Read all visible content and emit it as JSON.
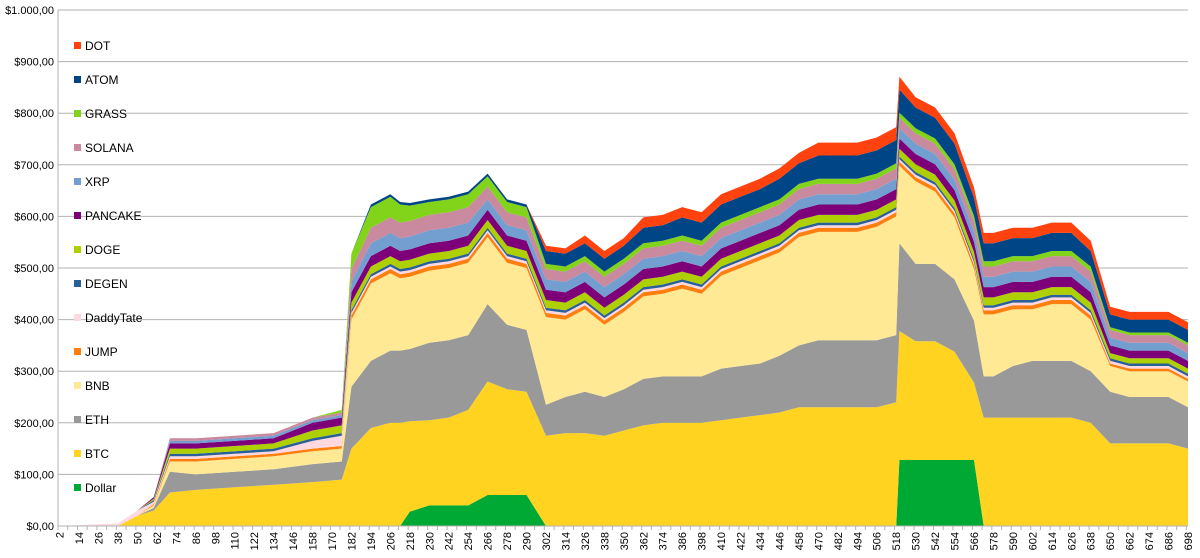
{
  "chart_data": {
    "type": "area",
    "stacked": true,
    "title": "",
    "xlabel": "",
    "ylabel": "",
    "ylim": [
      0,
      1000
    ],
    "y_ticks": [
      0,
      100,
      200,
      300,
      400,
      500,
      600,
      700,
      800,
      900,
      1000
    ],
    "y_tick_labels": [
      "$0,00",
      "$100,00",
      "$200,00",
      "$300,00",
      "$400,00",
      "$500,00",
      "$600,00",
      "$700,00",
      "$800,00",
      "$900,00",
      "$1.000,00"
    ],
    "xlim": [
      1,
      698
    ],
    "x_tick_labels": [
      "2",
      "14",
      "26",
      "38",
      "50",
      "62",
      "74",
      "86",
      "98",
      "110",
      "122",
      "134",
      "146",
      "158",
      "170",
      "182",
      "194",
      "206",
      "218",
      "230",
      "242",
      "254",
      "266",
      "278",
      "290",
      "302",
      "314",
      "326",
      "338",
      "350",
      "362",
      "374",
      "386",
      "398",
      "410",
      "422",
      "434",
      "446",
      "458",
      "470",
      "482",
      "494",
      "506",
      "518",
      "530",
      "542",
      "554",
      "566",
      "578",
      "590",
      "602",
      "614",
      "626",
      "638",
      "650",
      "662",
      "674",
      "686",
      "698"
    ],
    "grid": "horizontal",
    "legend_position": "left-inside",
    "x": [
      2,
      38,
      50,
      60,
      70,
      86,
      110,
      134,
      158,
      176,
      182,
      194,
      206,
      212,
      218,
      230,
      242,
      254,
      266,
      278,
      290,
      302,
      314,
      326,
      338,
      350,
      362,
      374,
      386,
      398,
      410,
      422,
      434,
      446,
      458,
      470,
      482,
      494,
      506,
      518,
      520,
      530,
      542,
      554,
      566,
      572,
      578,
      590,
      602,
      614,
      626,
      638,
      650,
      662,
      674,
      686,
      698
    ],
    "series": [
      {
        "name": "Dollar",
        "color": "#00a933",
        "values": [
          0,
          0,
          0,
          0,
          0,
          0,
          0,
          0,
          0,
          0,
          0,
          0,
          0,
          0,
          28,
          40,
          40,
          40,
          60,
          60,
          60,
          0,
          0,
          0,
          0,
          0,
          0,
          0,
          0,
          0,
          0,
          0,
          0,
          0,
          0,
          0,
          0,
          0,
          0,
          0,
          128,
          128,
          128,
          128,
          128,
          0,
          0,
          0,
          0,
          0,
          0,
          0,
          0,
          0,
          0,
          0,
          0
        ]
      },
      {
        "name": "BTC",
        "color": "#ffd320",
        "values": [
          0,
          0,
          20,
          30,
          65,
          70,
          75,
          80,
          85,
          90,
          150,
          190,
          200,
          200,
          175,
          165,
          170,
          185,
          220,
          205,
          200,
          175,
          180,
          180,
          175,
          185,
          195,
          200,
          200,
          200,
          205,
          210,
          215,
          220,
          230,
          230,
          230,
          230,
          230,
          240,
          250,
          230,
          230,
          210,
          150,
          210,
          210,
          210,
          210,
          210,
          210,
          200,
          160,
          160,
          160,
          160,
          150
        ]
      },
      {
        "name": "ETH",
        "color": "#999999",
        "values": [
          0,
          0,
          0,
          5,
          40,
          30,
          30,
          30,
          35,
          35,
          120,
          130,
          140,
          140,
          140,
          150,
          150,
          145,
          150,
          125,
          120,
          60,
          70,
          80,
          75,
          80,
          90,
          90,
          90,
          90,
          100,
          100,
          100,
          110,
          120,
          130,
          130,
          130,
          130,
          130,
          170,
          150,
          150,
          140,
          120,
          80,
          80,
          100,
          110,
          110,
          110,
          100,
          100,
          90,
          90,
          90,
          80
        ]
      },
      {
        "name": "BNB",
        "color": "#ffe994",
        "values": [
          0,
          0,
          0,
          5,
          20,
          25,
          25,
          25,
          25,
          25,
          130,
          150,
          150,
          140,
          140,
          140,
          140,
          140,
          130,
          120,
          120,
          170,
          150,
          160,
          140,
          150,
          160,
          160,
          170,
          160,
          180,
          190,
          200,
          200,
          210,
          210,
          210,
          210,
          220,
          230,
          150,
          160,
          140,
          120,
          100,
          120,
          120,
          110,
          100,
          110,
          110,
          100,
          50,
          50,
          50,
          50,
          50
        ]
      },
      {
        "name": "JUMP",
        "color": "#ff7f0e",
        "values": [
          0,
          0,
          0,
          2,
          5,
          5,
          5,
          5,
          5,
          5,
          8,
          8,
          8,
          8,
          8,
          8,
          8,
          8,
          8,
          8,
          8,
          8,
          8,
          8,
          8,
          8,
          8,
          8,
          8,
          8,
          8,
          8,
          8,
          8,
          8,
          8,
          8,
          8,
          8,
          8,
          8,
          8,
          8,
          8,
          8,
          8,
          8,
          8,
          8,
          8,
          8,
          8,
          5,
          5,
          5,
          5,
          5
        ]
      },
      {
        "name": "DaddyTate",
        "color": "#ffd8e0",
        "values": [
          0,
          5,
          10,
          5,
          5,
          5,
          5,
          5,
          15,
          20,
          5,
          5,
          5,
          5,
          5,
          5,
          5,
          5,
          5,
          5,
          5,
          5,
          5,
          5,
          5,
          5,
          5,
          5,
          5,
          5,
          5,
          5,
          5,
          5,
          5,
          5,
          5,
          5,
          5,
          5,
          5,
          5,
          5,
          5,
          5,
          5,
          5,
          5,
          5,
          5,
          5,
          5,
          5,
          5,
          5,
          5,
          5
        ]
      },
      {
        "name": "DEGEN",
        "color": "#2a6099",
        "values": [
          0,
          0,
          0,
          3,
          5,
          5,
          5,
          5,
          5,
          5,
          5,
          5,
          5,
          5,
          5,
          5,
          5,
          5,
          5,
          5,
          5,
          5,
          5,
          5,
          5,
          5,
          5,
          5,
          5,
          5,
          5,
          5,
          5,
          5,
          5,
          5,
          5,
          5,
          5,
          5,
          5,
          5,
          5,
          5,
          5,
          5,
          5,
          5,
          5,
          5,
          5,
          5,
          5,
          5,
          5,
          5,
          5
        ]
      },
      {
        "name": "DOGE",
        "color": "#aecf00",
        "values": [
          0,
          0,
          0,
          3,
          10,
          10,
          10,
          10,
          15,
          15,
          15,
          15,
          15,
          15,
          15,
          15,
          15,
          15,
          15,
          15,
          15,
          15,
          15,
          15,
          15,
          15,
          15,
          15,
          15,
          15,
          15,
          15,
          15,
          15,
          15,
          15,
          15,
          15,
          15,
          15,
          15,
          15,
          15,
          15,
          15,
          15,
          15,
          15,
          15,
          15,
          15,
          15,
          10,
          10,
          10,
          10,
          10
        ]
      },
      {
        "name": "PANCAKE",
        "color": "#7e0079",
        "values": [
          0,
          0,
          0,
          3,
          10,
          10,
          10,
          10,
          15,
          15,
          20,
          20,
          20,
          20,
          20,
          20,
          20,
          20,
          20,
          20,
          20,
          20,
          20,
          20,
          20,
          20,
          20,
          20,
          20,
          20,
          20,
          20,
          20,
          20,
          20,
          20,
          20,
          20,
          20,
          20,
          20,
          20,
          20,
          20,
          20,
          20,
          20,
          20,
          20,
          20,
          20,
          20,
          15,
          15,
          15,
          15,
          15
        ]
      },
      {
        "name": "XRP",
        "color": "#729fcf",
        "values": [
          0,
          0,
          0,
          0,
          5,
          5,
          5,
          5,
          5,
          5,
          20,
          25,
          25,
          25,
          25,
          25,
          25,
          25,
          20,
          20,
          20,
          20,
          20,
          20,
          20,
          20,
          20,
          20,
          20,
          20,
          20,
          20,
          20,
          20,
          20,
          20,
          20,
          20,
          20,
          20,
          20,
          20,
          20,
          20,
          20,
          20,
          20,
          20,
          20,
          20,
          20,
          20,
          15,
          15,
          15,
          15,
          15
        ]
      },
      {
        "name": "SOLANA",
        "color": "#c9899e",
        "values": [
          0,
          0,
          0,
          0,
          5,
          5,
          5,
          5,
          5,
          5,
          25,
          30,
          30,
          30,
          30,
          30,
          30,
          30,
          25,
          25,
          25,
          20,
          20,
          20,
          20,
          20,
          20,
          20,
          20,
          20,
          20,
          20,
          20,
          20,
          20,
          20,
          20,
          20,
          20,
          20,
          20,
          20,
          20,
          20,
          20,
          20,
          20,
          20,
          20,
          20,
          20,
          20,
          15,
          15,
          15,
          15,
          15
        ]
      },
      {
        "name": "GRASS",
        "color": "#81d41a",
        "values": [
          0,
          0,
          0,
          0,
          0,
          0,
          0,
          0,
          0,
          5,
          30,
          40,
          40,
          35,
          30,
          25,
          25,
          25,
          20,
          20,
          20,
          10,
          10,
          10,
          10,
          10,
          10,
          10,
          10,
          10,
          10,
          10,
          10,
          10,
          10,
          10,
          10,
          10,
          10,
          10,
          10,
          10,
          10,
          10,
          10,
          10,
          10,
          10,
          10,
          10,
          10,
          10,
          5,
          5,
          5,
          5,
          5
        ]
      },
      {
        "name": "ATOM",
        "color": "#004586",
        "values": [
          0,
          0,
          0,
          0,
          0,
          0,
          0,
          0,
          0,
          0,
          0,
          5,
          5,
          5,
          5,
          5,
          5,
          5,
          5,
          5,
          5,
          25,
          25,
          25,
          25,
          25,
          30,
          30,
          35,
          35,
          35,
          35,
          35,
          40,
          40,
          45,
          45,
          45,
          45,
          45,
          45,
          40,
          40,
          40,
          35,
          35,
          35,
          35,
          35,
          35,
          35,
          30,
          25,
          25,
          25,
          25,
          25
        ]
      },
      {
        "name": "DOT",
        "color": "#ff420e",
        "values": [
          0,
          0,
          0,
          0,
          0,
          0,
          0,
          0,
          0,
          0,
          0,
          0,
          0,
          0,
          0,
          0,
          0,
          0,
          0,
          0,
          0,
          10,
          10,
          15,
          15,
          15,
          20,
          20,
          20,
          20,
          20,
          20,
          20,
          20,
          20,
          25,
          25,
          25,
          25,
          25,
          25,
          20,
          20,
          20,
          20,
          20,
          20,
          20,
          20,
          20,
          20,
          20,
          15,
          15,
          15,
          15,
          15
        ]
      }
    ]
  }
}
